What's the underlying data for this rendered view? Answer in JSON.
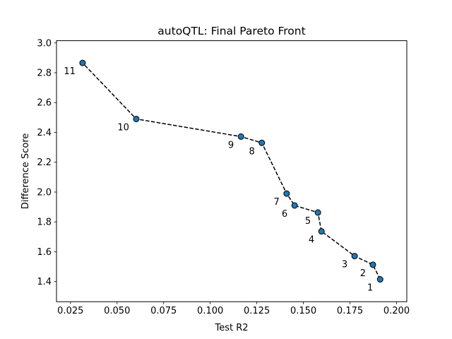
{
  "chart_data": {
    "type": "scatter",
    "title": "autoQTL: Final Pareto Front",
    "xlabel": "Test R2",
    "ylabel": "Difference Score",
    "xlim": [
      0.0175,
      0.2055
    ],
    "ylim": [
      1.265,
      3.015
    ],
    "xticks": [
      0.025,
      0.05,
      0.075,
      0.1,
      0.125,
      0.15,
      0.175,
      0.2
    ],
    "xtick_labels": [
      "0.025",
      "0.050",
      "0.075",
      "0.100",
      "0.125",
      "0.150",
      "0.175",
      "0.200"
    ],
    "yticks": [
      1.4,
      1.6,
      1.8,
      2.0,
      2.2,
      2.4,
      2.6,
      2.8,
      3.0
    ],
    "ytick_labels": [
      "1.4",
      "1.6",
      "1.8",
      "2.0",
      "2.2",
      "2.4",
      "2.6",
      "2.8",
      "3.0"
    ],
    "grid": false,
    "line_style": "dashed",
    "line_color": "#000000",
    "marker_color": "#1f77b4",
    "marker_edge_color": "#000000",
    "points": [
      {
        "label": "1",
        "x": 0.1912,
        "y": 1.415
      },
      {
        "label": "2",
        "x": 0.1873,
        "y": 1.513
      },
      {
        "label": "3",
        "x": 0.1775,
        "y": 1.571
      },
      {
        "label": "4",
        "x": 0.1597,
        "y": 1.737
      },
      {
        "label": "5",
        "x": 0.1578,
        "y": 1.863
      },
      {
        "label": "6",
        "x": 0.1453,
        "y": 1.91
      },
      {
        "label": "7",
        "x": 0.141,
        "y": 1.99
      },
      {
        "label": "8",
        "x": 0.1277,
        "y": 2.33
      },
      {
        "label": "9",
        "x": 0.1165,
        "y": 2.372
      },
      {
        "label": "10",
        "x": 0.0603,
        "y": 2.49
      },
      {
        "label": "11",
        "x": 0.0315,
        "y": 2.866
      }
    ]
  }
}
